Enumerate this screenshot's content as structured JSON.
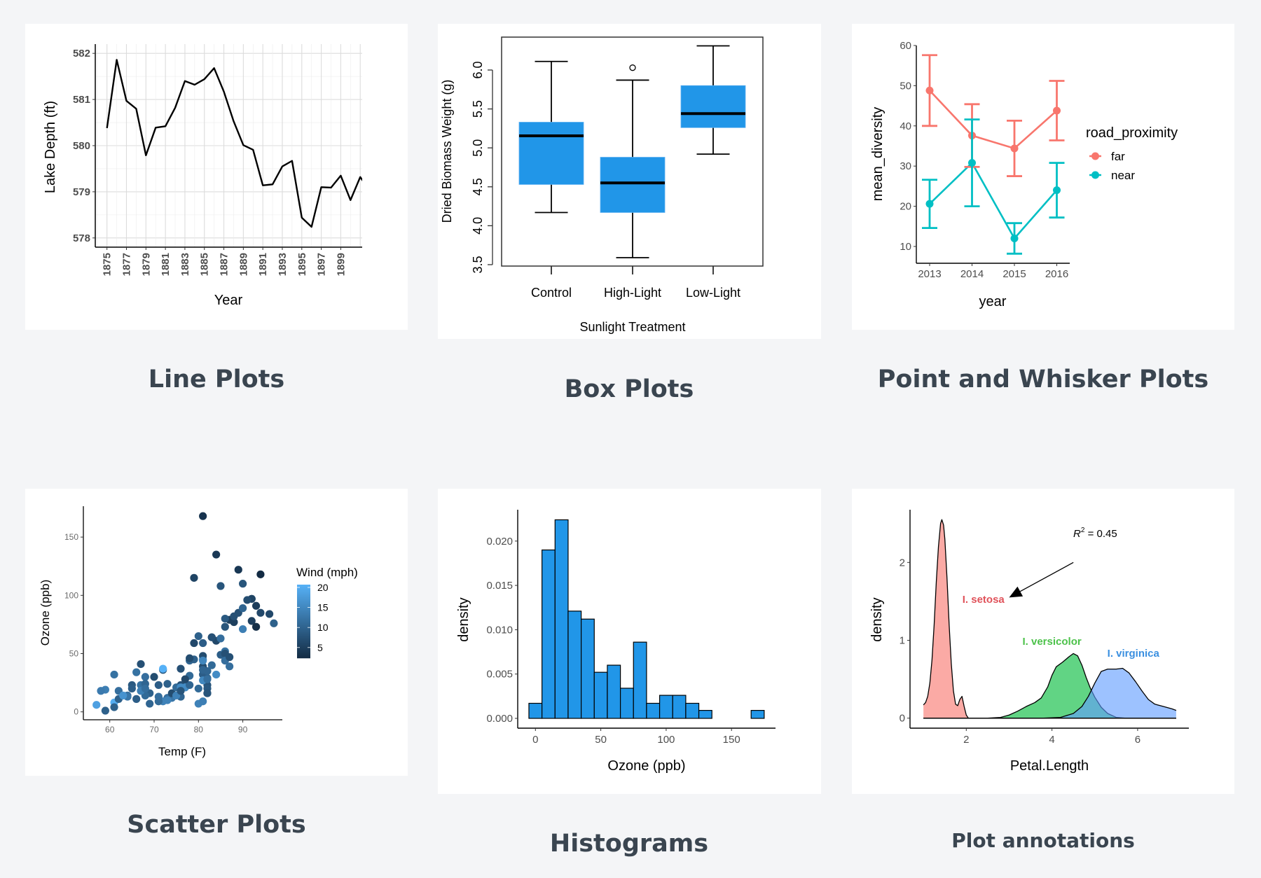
{
  "cards": [
    {
      "title": "Line Plots"
    },
    {
      "title": "Box Plots"
    },
    {
      "title": "Point and Whisker Plots"
    },
    {
      "title": "Scatter Plots"
    },
    {
      "title": "Histograms"
    },
    {
      "title": "Plot annotations"
    }
  ],
  "chart_data": [
    {
      "type": "line",
      "xlabel": "Year",
      "ylabel": "Lake Depth (ft)",
      "xlim": [
        1873.8,
        1901.2
      ],
      "ylim": [
        577.8,
        582.2
      ],
      "grid": true,
      "line_color": "#000000",
      "x_ticks": [
        1875,
        1877,
        1879,
        1881,
        1883,
        1885,
        1887,
        1889,
        1891,
        1893,
        1895,
        1897,
        1899
      ],
      "y_ticks": [
        578,
        579,
        580,
        581,
        582
      ],
      "x": [
        1875,
        1876,
        1877,
        1878,
        1879,
        1880,
        1881,
        1882,
        1883,
        1884,
        1885,
        1886,
        1887,
        1888,
        1889,
        1890,
        1891,
        1892,
        1893,
        1894,
        1895,
        1896,
        1897,
        1898,
        1899,
        1900,
        1901,
        1902
      ],
      "y": [
        580.38,
        581.86,
        580.97,
        580.8,
        579.79,
        580.39,
        580.42,
        580.82,
        581.4,
        581.32,
        581.44,
        581.68,
        581.17,
        580.53,
        580.01,
        579.91,
        579.14,
        579.16,
        579.55,
        579.67,
        578.44,
        578.24,
        579.1,
        579.09,
        579.35,
        578.82,
        579.32,
        579.01
      ]
    },
    {
      "type": "box",
      "xlabel": "Sunlight Treatment",
      "ylabel": "Dried Biomass Weight (g)",
      "ylim": [
        3.48,
        6.42
      ],
      "y_ticks": [
        "3.5",
        "4.0",
        "4.5",
        "5.0",
        "5.5",
        "6.0"
      ],
      "fill": "#2196e8",
      "categories": [
        "Control",
        "High-Light",
        "Low-Light"
      ],
      "boxes": [
        {
          "min": 4.17,
          "q1": 4.53,
          "median": 5.155,
          "q3": 5.33,
          "max": 6.11,
          "outliers": []
        },
        {
          "min": 3.59,
          "q1": 4.17,
          "median": 4.55,
          "q3": 4.88,
          "max": 5.87,
          "outliers": [
            6.03
          ]
        },
        {
          "min": 4.92,
          "q1": 5.26,
          "median": 5.44,
          "q3": 5.8,
          "max": 6.31,
          "outliers": []
        }
      ]
    },
    {
      "type": "line",
      "subtype": "point-errorbar",
      "xlabel": "year",
      "ylabel": "mean_diversity",
      "ylim": [
        5.8,
        60
      ],
      "x": [
        2013,
        2014,
        2015,
        2016
      ],
      "x_ticks": [
        "2013",
        "2014",
        "2015",
        "2016"
      ],
      "y_ticks": [
        10,
        20,
        30,
        40,
        50,
        60
      ],
      "legend": {
        "title": "road_proximity",
        "position": "right"
      },
      "series": [
        {
          "name": "far",
          "color": "#F8766D",
          "values": [
            48.8,
            37.6,
            34.4,
            43.8
          ],
          "lower": [
            40.0,
            29.8,
            27.5,
            36.4
          ],
          "upper": [
            57.6,
            45.4,
            41.3,
            51.2
          ]
        },
        {
          "name": "near",
          "color": "#00BFC4",
          "values": [
            20.6,
            30.8,
            12.0,
            24.0
          ],
          "lower": [
            14.6,
            20.0,
            8.2,
            17.2
          ],
          "upper": [
            26.6,
            41.6,
            15.8,
            30.8
          ]
        }
      ]
    },
    {
      "type": "scatter",
      "xlabel": "Temp (F)",
      "ylabel": "Ozone (ppb)",
      "xlim": [
        54,
        99
      ],
      "ylim": [
        -7,
        176
      ],
      "x_ticks": [
        60,
        70,
        80,
        90
      ],
      "y_ticks": [
        0,
        50,
        100,
        150
      ],
      "color_legend": {
        "title": "Wind (mph)",
        "ticks": [
          5,
          10,
          15,
          20
        ],
        "low_color": "#132B43",
        "high_color": "#56B1F7",
        "range": [
          2.3,
          20.7
        ],
        "position": "right"
      },
      "points_columns": [
        "Temp",
        "Ozone",
        "Wind"
      ],
      "points": [
        [
          67,
          41,
          7.4
        ],
        [
          72,
          36,
          8.0
        ],
        [
          74,
          12,
          12.6
        ],
        [
          62,
          18,
          11.5
        ],
        [
          65,
          23,
          8.6
        ],
        [
          59,
          19,
          13.8
        ],
        [
          61,
          8,
          20.1
        ],
        [
          69,
          16,
          9.7
        ],
        [
          66,
          11,
          9.2
        ],
        [
          68,
          14,
          10.9
        ],
        [
          58,
          18,
          13.2
        ],
        [
          64,
          14,
          11.5
        ],
        [
          66,
          34,
          12.0
        ],
        [
          57,
          6,
          18.4
        ],
        [
          68,
          30,
          11.5
        ],
        [
          62,
          11,
          9.7
        ],
        [
          59,
          1,
          9.7
        ],
        [
          73,
          11,
          16.6
        ],
        [
          61,
          4,
          9.7
        ],
        [
          61,
          32,
          12.0
        ],
        [
          67,
          23,
          12.0
        ],
        [
          81,
          45,
          14.9
        ],
        [
          79,
          115,
          5.7
        ],
        [
          76,
          37,
          7.4
        ],
        [
          82,
          29,
          9.7
        ],
        [
          90,
          71,
          13.8
        ],
        [
          87,
          39,
          11.5
        ],
        [
          82,
          23,
          8.0
        ],
        [
          77,
          21,
          14.9
        ],
        [
          72,
          37,
          20.7
        ],
        [
          65,
          20,
          9.2
        ],
        [
          73,
          12,
          11.5
        ],
        [
          76,
          13,
          10.3
        ],
        [
          84,
          135,
          4.1
        ],
        [
          85,
          49,
          9.2
        ],
        [
          81,
          32,
          9.2
        ],
        [
          83,
          64,
          4.6
        ],
        [
          83,
          40,
          10.9
        ],
        [
          88,
          77,
          5.1
        ],
        [
          92,
          97,
          6.3
        ],
        [
          92,
          97,
          5.7
        ],
        [
          89,
          85,
          7.4
        ],
        [
          73,
          10,
          14.3
        ],
        [
          81,
          27,
          14.9
        ],
        [
          80,
          7,
          14.3
        ],
        [
          81,
          48,
          6.9
        ],
        [
          82,
          35,
          10.3
        ],
        [
          84,
          61,
          6.3
        ],
        [
          87,
          79,
          5.1
        ],
        [
          85,
          63,
          11.5
        ],
        [
          74,
          16,
          6.9
        ],
        [
          86,
          80,
          8.6
        ],
        [
          85,
          108,
          8.0
        ],
        [
          82,
          20,
          8.6
        ],
        [
          86,
          52,
          12.0
        ],
        [
          88,
          82,
          7.4
        ],
        [
          86,
          50,
          7.4
        ],
        [
          83,
          64,
          7.4
        ],
        [
          81,
          59,
          9.2
        ],
        [
          81,
          39,
          6.9
        ],
        [
          81,
          9,
          13.8
        ],
        [
          82,
          16,
          7.4
        ],
        [
          89,
          122,
          4.0
        ],
        [
          90,
          89,
          10.3
        ],
        [
          90,
          110,
          8.0
        ],
        [
          86,
          44,
          11.5
        ],
        [
          82,
          28,
          11.5
        ],
        [
          80,
          65,
          9.7
        ],
        [
          77,
          22,
          10.3
        ],
        [
          79,
          59,
          6.3
        ],
        [
          76,
          23,
          7.4
        ],
        [
          78,
          31,
          10.9
        ],
        [
          78,
          44,
          10.3
        ],
        [
          77,
          21,
          15.5
        ],
        [
          72,
          9,
          14.3
        ],
        [
          79,
          45,
          9.7
        ],
        [
          81,
          168,
          3.4
        ],
        [
          86,
          73,
          8.0
        ],
        [
          97,
          76,
          9.7
        ],
        [
          94,
          118,
          2.3
        ],
        [
          96,
          84,
          6.3
        ],
        [
          94,
          85,
          6.3
        ],
        [
          91,
          96,
          6.9
        ],
        [
          92,
          78,
          5.1
        ],
        [
          93,
          73,
          2.8
        ],
        [
          93,
          91,
          4.6
        ],
        [
          87,
          47,
          7.4
        ],
        [
          84,
          32,
          15.5
        ],
        [
          80,
          20,
          10.9
        ],
        [
          78,
          23,
          10.3
        ],
        [
          75,
          21,
          10.9
        ],
        [
          73,
          24,
          9.7
        ],
        [
          81,
          44,
          14.9
        ],
        [
          76,
          21,
          15.5
        ],
        [
          77,
          28,
          6.3
        ],
        [
          71,
          9,
          10.9
        ],
        [
          71,
          13,
          11.5
        ],
        [
          78,
          46,
          6.9
        ],
        [
          67,
          18,
          13.8
        ],
        [
          76,
          13,
          10.3
        ],
        [
          68,
          24,
          10.3
        ],
        [
          82,
          16,
          8.0
        ],
        [
          64,
          13,
          12.6
        ],
        [
          71,
          23,
          9.2
        ],
        [
          81,
          36,
          10.3
        ],
        [
          69,
          7,
          10.3
        ],
        [
          63,
          14,
          16.6
        ],
        [
          70,
          30,
          6.9
        ],
        [
          75,
          14,
          14.3
        ],
        [
          76,
          18,
          8.0
        ],
        [
          68,
          20,
          11.5
        ]
      ]
    },
    {
      "type": "bar",
      "subtype": "histogram",
      "xlabel": "Ozone (ppb)",
      "ylabel": "density",
      "xlim": [
        -13.6,
        183.7
      ],
      "ylim": [
        0,
        0.0235
      ],
      "x_ticks": [
        0,
        50,
        100,
        150
      ],
      "y_ticks": [
        "0.000",
        "0.005",
        "0.010",
        "0.015",
        "0.020"
      ],
      "fill": "#2196e8",
      "bin_width": 10,
      "bin_centers": [
        0,
        10,
        20,
        30,
        40,
        50,
        60,
        70,
        80,
        90,
        100,
        110,
        120,
        130,
        140,
        150,
        160,
        170
      ],
      "values": [
        0.0017,
        0.019,
        0.0224,
        0.0121,
        0.0112,
        0.0052,
        0.006,
        0.0034,
        0.0086,
        0.0017,
        0.0026,
        0.0026,
        0.0017,
        0.0009,
        0,
        0,
        0,
        0.0009
      ]
    },
    {
      "type": "area",
      "subtype": "density",
      "xlabel": "Petal.Length",
      "ylabel": "density",
      "xlim": [
        0.69,
        7.44
      ],
      "ylim": [
        -0.13,
        2.68
      ],
      "x_ticks": [
        2,
        4,
        6
      ],
      "y_ticks": [
        0,
        1,
        2
      ],
      "series": [
        {
          "name": "I. setosa",
          "color": "#F8766D",
          "label_color": "#e0525a",
          "points": [
            [
              1.0,
              0.17
            ],
            [
              1.05,
              0.2
            ],
            [
              1.1,
              0.28
            ],
            [
              1.15,
              0.45
            ],
            [
              1.2,
              0.75
            ],
            [
              1.25,
              1.2
            ],
            [
              1.3,
              1.75
            ],
            [
              1.35,
              2.2
            ],
            [
              1.4,
              2.5
            ],
            [
              1.43,
              2.55
            ],
            [
              1.47,
              2.48
            ],
            [
              1.5,
              2.3
            ],
            [
              1.55,
              1.8
            ],
            [
              1.6,
              1.2
            ],
            [
              1.65,
              0.7
            ],
            [
              1.7,
              0.35
            ],
            [
              1.75,
              0.18
            ],
            [
              1.8,
              0.16
            ],
            [
              1.85,
              0.24
            ],
            [
              1.9,
              0.28
            ],
            [
              1.95,
              0.15
            ],
            [
              2.0,
              0.04
            ],
            [
              2.05,
              0.0
            ],
            [
              6.9,
              0.0
            ]
          ]
        },
        {
          "name": "I. versicolor",
          "color": "#00BA38",
          "label_color": "#4cc24a",
          "points": [
            [
              1.0,
              0.0
            ],
            [
              2.5,
              0.0
            ],
            [
              2.8,
              0.01
            ],
            [
              3.0,
              0.04
            ],
            [
              3.2,
              0.09
            ],
            [
              3.4,
              0.15
            ],
            [
              3.6,
              0.2
            ],
            [
              3.75,
              0.26
            ],
            [
              3.9,
              0.4
            ],
            [
              4.0,
              0.55
            ],
            [
              4.1,
              0.66
            ],
            [
              4.25,
              0.72
            ],
            [
              4.4,
              0.79
            ],
            [
              4.5,
              0.83
            ],
            [
              4.6,
              0.8
            ],
            [
              4.7,
              0.68
            ],
            [
              4.8,
              0.52
            ],
            [
              4.9,
              0.38
            ],
            [
              5.0,
              0.27
            ],
            [
              5.15,
              0.14
            ],
            [
              5.3,
              0.06
            ],
            [
              5.5,
              0.01
            ],
            [
              5.7,
              0.0
            ],
            [
              6.9,
              0.0
            ]
          ]
        },
        {
          "name": "I. virginica",
          "color": "#619CFF",
          "label_color": "#3a8fe0",
          "points": [
            [
              1.0,
              0.0
            ],
            [
              3.8,
              0.0
            ],
            [
              4.2,
              0.01
            ],
            [
              4.5,
              0.06
            ],
            [
              4.7,
              0.15
            ],
            [
              4.85,
              0.28
            ],
            [
              5.0,
              0.45
            ],
            [
              5.15,
              0.6
            ],
            [
              5.3,
              0.63
            ],
            [
              5.5,
              0.63
            ],
            [
              5.65,
              0.64
            ],
            [
              5.8,
              0.58
            ],
            [
              5.95,
              0.47
            ],
            [
              6.1,
              0.35
            ],
            [
              6.25,
              0.24
            ],
            [
              6.4,
              0.18
            ],
            [
              6.6,
              0.15
            ],
            [
              6.8,
              0.12
            ],
            [
              6.9,
              0.1
            ]
          ]
        }
      ],
      "annotation": {
        "var": "R",
        "sup": "2",
        "rest": " = 0.45",
        "arrow_from": [
          4.5,
          2.0
        ],
        "arrow_to": [
          3.0,
          1.55
        ]
      },
      "label_positions": [
        [
          2.4,
          1.48
        ],
        [
          4.0,
          0.94
        ],
        [
          5.9,
          0.79
        ]
      ]
    }
  ]
}
